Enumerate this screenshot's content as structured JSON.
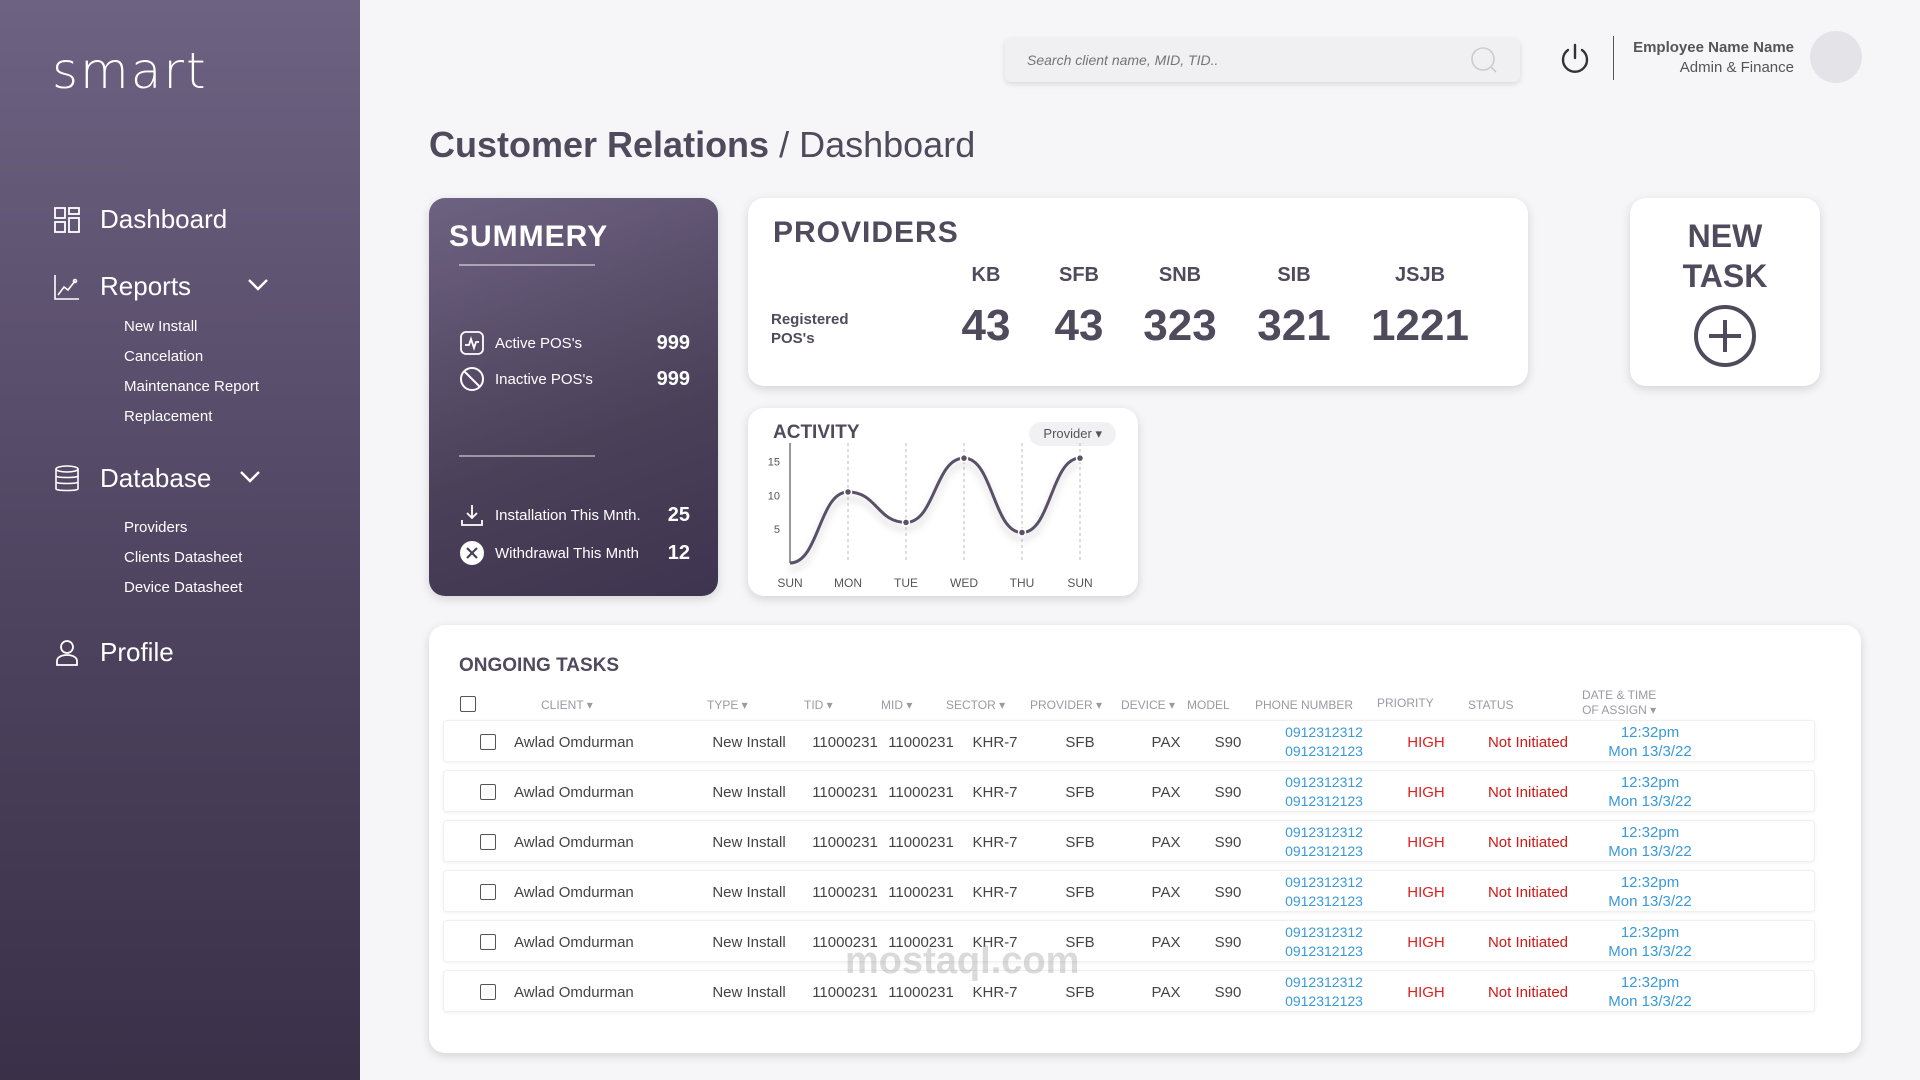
{
  "sidebar": {
    "logo": "smart",
    "nav": [
      {
        "label": "Dashboard",
        "icon": "grid-icon"
      },
      {
        "label": "Reports",
        "icon": "chart-icon",
        "sub": [
          "New Install",
          "Cancelation",
          "Maintenance Report",
          "Replacement"
        ]
      },
      {
        "label": "Database",
        "icon": "database-icon",
        "sub": [
          "Providers",
          "Clients Datasheet",
          "Device Datasheet"
        ]
      },
      {
        "label": "Profile",
        "icon": "user-icon"
      }
    ]
  },
  "header": {
    "search_placeholder": "Search client name, MID, TID..",
    "user_name": "Employee Name Name",
    "user_role": "Admin & Finance"
  },
  "page": {
    "section": "Customer Relations",
    "sep": " / ",
    "title": "Dashboard"
  },
  "summary": {
    "title": "SUMMERY",
    "active_label": "Active POS's",
    "active_value": "999",
    "inactive_label": "Inactive POS's",
    "inactive_value": "999",
    "install_label": "Installation This Mnth.",
    "install_value": "25",
    "withdraw_label": "Withdrawal This Mnth",
    "withdraw_value": "12"
  },
  "providers": {
    "title": "PROVIDERS",
    "row_label_1": "Registered",
    "row_label_2": "POS's",
    "items": [
      {
        "name": "KB",
        "value": "43"
      },
      {
        "name": "SFB",
        "value": "43"
      },
      {
        "name": "SNB",
        "value": "323"
      },
      {
        "name": "SIB",
        "value": "321"
      },
      {
        "name": "JSJB",
        "value": "1221"
      }
    ]
  },
  "new_task": {
    "line1": "NEW",
    "line2": "TASK"
  },
  "activity": {
    "title": "ACTIVITY",
    "dropdown": "Provider",
    "chart_data": {
      "type": "line",
      "x": [
        "SUN",
        "MON",
        "TUE",
        "WED",
        "THU",
        "SUN"
      ],
      "values": [
        0,
        10.5,
        6,
        15.5,
        4.5,
        15.5
      ],
      "y_ticks": [
        5,
        10,
        15
      ],
      "ylim": [
        0,
        17
      ]
    }
  },
  "tasks": {
    "title": "ONGOING TASKS",
    "headers": {
      "client": "CLIENT",
      "type": "TYPE",
      "tid": "TID",
      "mid": "MID",
      "sector": "SECTOR",
      "provider": "PROVIDER",
      "device": "DEVICE",
      "model": "MODEL",
      "phone": "PHONE NUMBER",
      "priority": "PRIORITY",
      "status": "STATUS",
      "date1": "DATE & TIME",
      "date2": "OF ASSIGN"
    },
    "rows": [
      {
        "client": "Awlad Omdurman",
        "type": "New Install",
        "tid": "11000231",
        "mid": "11000231",
        "sector": "KHR-7",
        "provider": "SFB",
        "device": "PAX",
        "model": "S90",
        "phone1": "0912312312",
        "phone2": "0912312123",
        "priority": "HIGH",
        "status": "Not Initiated",
        "time": "12:32pm",
        "date": "Mon 13/3/22"
      },
      {
        "client": "Awlad Omdurman",
        "type": "New Install",
        "tid": "11000231",
        "mid": "11000231",
        "sector": "KHR-7",
        "provider": "SFB",
        "device": "PAX",
        "model": "S90",
        "phone1": "0912312312",
        "phone2": "0912312123",
        "priority": "HIGH",
        "status": "Not Initiated",
        "time": "12:32pm",
        "date": "Mon 13/3/22"
      },
      {
        "client": "Awlad Omdurman",
        "type": "New Install",
        "tid": "11000231",
        "mid": "11000231",
        "sector": "KHR-7",
        "provider": "SFB",
        "device": "PAX",
        "model": "S90",
        "phone1": "0912312312",
        "phone2": "0912312123",
        "priority": "HIGH",
        "status": "Not Initiated",
        "time": "12:32pm",
        "date": "Mon 13/3/22"
      },
      {
        "client": "Awlad Omdurman",
        "type": "New Install",
        "tid": "11000231",
        "mid": "11000231",
        "sector": "KHR-7",
        "provider": "SFB",
        "device": "PAX",
        "model": "S90",
        "phone1": "0912312312",
        "phone2": "0912312123",
        "priority": "HIGH",
        "status": "Not Initiated",
        "time": "12:32pm",
        "date": "Mon 13/3/22"
      },
      {
        "client": "Awlad Omdurman",
        "type": "New Install",
        "tid": "11000231",
        "mid": "11000231",
        "sector": "KHR-7",
        "provider": "SFB",
        "device": "PAX",
        "model": "S90",
        "phone1": "0912312312",
        "phone2": "0912312123",
        "priority": "HIGH",
        "status": "Not Initiated",
        "time": "12:32pm",
        "date": "Mon 13/3/22"
      },
      {
        "client": "Awlad Omdurman",
        "type": "New Install",
        "tid": "11000231",
        "mid": "11000231",
        "sector": "KHR-7",
        "provider": "SFB",
        "device": "PAX",
        "model": "S90",
        "phone1": "0912312312",
        "phone2": "0912312123",
        "priority": "HIGH",
        "status": "Not Initiated",
        "time": "12:32pm",
        "date": "Mon 13/3/22"
      }
    ]
  },
  "watermark": "mostaql.com",
  "colors": {
    "sidebar": "#5a4e6e",
    "accent_text": "#4f4a5c",
    "link": "#3a9ad9",
    "priority_high": "#e02020",
    "status": "#d01818"
  }
}
